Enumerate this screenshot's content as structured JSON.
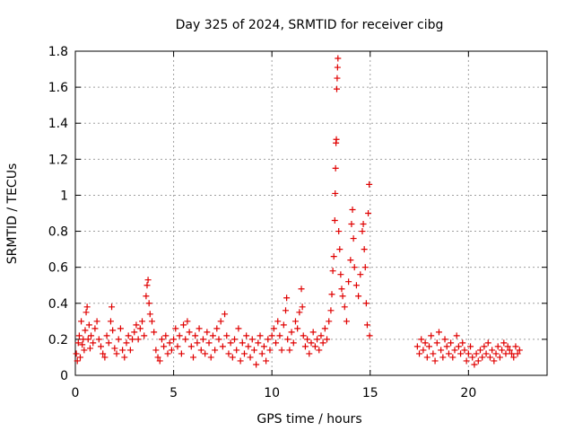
{
  "chart_data": {
    "type": "scatter",
    "title": "Day 325 of 2024, SRMTID for receiver cibg",
    "xlabel": "GPS time / hours",
    "ylabel": "SRMTID / TECUs",
    "xlim": [
      0,
      24
    ],
    "ylim": [
      0,
      1.8
    ],
    "xticks": [
      0,
      5,
      10,
      15,
      20
    ],
    "yticks": [
      0,
      0.2,
      0.4,
      0.6,
      0.8,
      1,
      1.2,
      1.4,
      1.6,
      1.8
    ],
    "ytick_labels": [
      "0",
      "0.2",
      "0.4",
      "0.6",
      "0.8",
      "1",
      "1.2",
      "1.4",
      "1.6",
      "1.8"
    ],
    "grid": true,
    "marker": "+",
    "color": "#e00000",
    "series": [
      {
        "name": "SRMTID",
        "points": [
          [
            0.05,
            0.12
          ],
          [
            0.1,
            0.08
          ],
          [
            0.15,
            0.18
          ],
          [
            0.2,
            0.22
          ],
          [
            0.25,
            0.1
          ],
          [
            0.3,
            0.3
          ],
          [
            0.35,
            0.17
          ],
          [
            0.4,
            0.2
          ],
          [
            0.45,
            0.14
          ],
          [
            0.5,
            0.25
          ],
          [
            0.55,
            0.35
          ],
          [
            0.6,
            0.38
          ],
          [
            0.65,
            0.2
          ],
          [
            0.7,
            0.28
          ],
          [
            0.75,
            0.15
          ],
          [
            0.8,
            0.22
          ],
          [
            0.9,
            0.18
          ],
          [
            1.0,
            0.26
          ],
          [
            1.1,
            0.3
          ],
          [
            1.2,
            0.2
          ],
          [
            1.3,
            0.16
          ],
          [
            1.4,
            0.12
          ],
          [
            1.5,
            0.1
          ],
          [
            1.6,
            0.22
          ],
          [
            1.7,
            0.18
          ],
          [
            1.8,
            0.3
          ],
          [
            1.85,
            0.38
          ],
          [
            1.9,
            0.25
          ],
          [
            2.0,
            0.15
          ],
          [
            2.1,
            0.12
          ],
          [
            2.2,
            0.2
          ],
          [
            2.3,
            0.26
          ],
          [
            2.4,
            0.14
          ],
          [
            2.5,
            0.1
          ],
          [
            2.6,
            0.18
          ],
          [
            2.7,
            0.22
          ],
          [
            2.8,
            0.14
          ],
          [
            2.9,
            0.2
          ],
          [
            3.0,
            0.24
          ],
          [
            3.1,
            0.28
          ],
          [
            3.2,
            0.2
          ],
          [
            3.3,
            0.26
          ],
          [
            3.4,
            0.3
          ],
          [
            3.5,
            0.22
          ],
          [
            3.6,
            0.44
          ],
          [
            3.65,
            0.5
          ],
          [
            3.7,
            0.53
          ],
          [
            3.75,
            0.4
          ],
          [
            3.8,
            0.34
          ],
          [
            3.9,
            0.3
          ],
          [
            4.0,
            0.24
          ],
          [
            4.1,
            0.14
          ],
          [
            4.2,
            0.1
          ],
          [
            4.3,
            0.08
          ],
          [
            4.4,
            0.2
          ],
          [
            4.5,
            0.16
          ],
          [
            4.6,
            0.22
          ],
          [
            4.7,
            0.12
          ],
          [
            4.8,
            0.18
          ],
          [
            4.9,
            0.14
          ],
          [
            5.0,
            0.2
          ],
          [
            5.1,
            0.26
          ],
          [
            5.2,
            0.16
          ],
          [
            5.3,
            0.22
          ],
          [
            5.4,
            0.12
          ],
          [
            5.5,
            0.28
          ],
          [
            5.6,
            0.2
          ],
          [
            5.7,
            0.3
          ],
          [
            5.8,
            0.24
          ],
          [
            5.9,
            0.16
          ],
          [
            6.0,
            0.1
          ],
          [
            6.1,
            0.22
          ],
          [
            6.2,
            0.18
          ],
          [
            6.3,
            0.26
          ],
          [
            6.4,
            0.14
          ],
          [
            6.5,
            0.2
          ],
          [
            6.6,
            0.12
          ],
          [
            6.7,
            0.24
          ],
          [
            6.8,
            0.18
          ],
          [
            6.9,
            0.1
          ],
          [
            7.0,
            0.22
          ],
          [
            7.1,
            0.14
          ],
          [
            7.2,
            0.26
          ],
          [
            7.3,
            0.2
          ],
          [
            7.4,
            0.3
          ],
          [
            7.5,
            0.16
          ],
          [
            7.6,
            0.34
          ],
          [
            7.7,
            0.22
          ],
          [
            7.8,
            0.12
          ],
          [
            7.9,
            0.18
          ],
          [
            8.0,
            0.1
          ],
          [
            8.1,
            0.2
          ],
          [
            8.2,
            0.14
          ],
          [
            8.3,
            0.26
          ],
          [
            8.4,
            0.08
          ],
          [
            8.5,
            0.18
          ],
          [
            8.6,
            0.12
          ],
          [
            8.7,
            0.22
          ],
          [
            8.8,
            0.16
          ],
          [
            8.9,
            0.1
          ],
          [
            9.0,
            0.2
          ],
          [
            9.1,
            0.14
          ],
          [
            9.2,
            0.06
          ],
          [
            9.3,
            0.18
          ],
          [
            9.4,
            0.22
          ],
          [
            9.5,
            0.12
          ],
          [
            9.6,
            0.16
          ],
          [
            9.7,
            0.08
          ],
          [
            9.8,
            0.2
          ],
          [
            9.9,
            0.14
          ],
          [
            10.0,
            0.22
          ],
          [
            10.1,
            0.26
          ],
          [
            10.2,
            0.18
          ],
          [
            10.3,
            0.3
          ],
          [
            10.4,
            0.22
          ],
          [
            10.5,
            0.14
          ],
          [
            10.6,
            0.28
          ],
          [
            10.7,
            0.36
          ],
          [
            10.75,
            0.43
          ],
          [
            10.8,
            0.2
          ],
          [
            10.9,
            0.14
          ],
          [
            11.0,
            0.24
          ],
          [
            11.1,
            0.18
          ],
          [
            11.2,
            0.3
          ],
          [
            11.3,
            0.26
          ],
          [
            11.4,
            0.35
          ],
          [
            11.5,
            0.48
          ],
          [
            11.55,
            0.38
          ],
          [
            11.6,
            0.22
          ],
          [
            11.7,
            0.16
          ],
          [
            11.8,
            0.2
          ],
          [
            11.9,
            0.12
          ],
          [
            12.0,
            0.18
          ],
          [
            12.1,
            0.24
          ],
          [
            12.2,
            0.16
          ],
          [
            12.3,
            0.2
          ],
          [
            12.4,
            0.14
          ],
          [
            12.5,
            0.22
          ],
          [
            12.6,
            0.18
          ],
          [
            12.7,
            0.26
          ],
          [
            12.8,
            0.2
          ],
          [
            12.9,
            0.3
          ],
          [
            13.0,
            0.36
          ],
          [
            13.05,
            0.45
          ],
          [
            13.1,
            0.58
          ],
          [
            13.15,
            0.66
          ],
          [
            13.2,
            0.86
          ],
          [
            13.22,
            1.01
          ],
          [
            13.24,
            1.15
          ],
          [
            13.26,
            1.29
          ],
          [
            13.28,
            1.31
          ],
          [
            13.3,
            1.59
          ],
          [
            13.32,
            1.65
          ],
          [
            13.34,
            1.71
          ],
          [
            13.36,
            1.76
          ],
          [
            13.4,
            0.8
          ],
          [
            13.45,
            0.7
          ],
          [
            13.5,
            0.56
          ],
          [
            13.55,
            0.48
          ],
          [
            13.6,
            0.44
          ],
          [
            13.7,
            0.38
          ],
          [
            13.8,
            0.3
          ],
          [
            13.9,
            0.52
          ],
          [
            14.0,
            0.64
          ],
          [
            14.05,
            0.84
          ],
          [
            14.1,
            0.92
          ],
          [
            14.15,
            0.76
          ],
          [
            14.2,
            0.6
          ],
          [
            14.3,
            0.5
          ],
          [
            14.4,
            0.44
          ],
          [
            14.5,
            0.56
          ],
          [
            14.6,
            0.8
          ],
          [
            14.65,
            0.84
          ],
          [
            14.7,
            0.7
          ],
          [
            14.75,
            0.6
          ],
          [
            14.8,
            0.4
          ],
          [
            14.85,
            0.28
          ],
          [
            14.9,
            0.9
          ],
          [
            14.95,
            1.06
          ],
          [
            14.97,
            0.22
          ],
          [
            17.4,
            0.16
          ],
          [
            17.5,
            0.12
          ],
          [
            17.6,
            0.2
          ],
          [
            17.7,
            0.14
          ],
          [
            17.8,
            0.18
          ],
          [
            17.9,
            0.1
          ],
          [
            18.0,
            0.16
          ],
          [
            18.1,
            0.22
          ],
          [
            18.2,
            0.12
          ],
          [
            18.3,
            0.08
          ],
          [
            18.4,
            0.18
          ],
          [
            18.5,
            0.24
          ],
          [
            18.6,
            0.14
          ],
          [
            18.7,
            0.1
          ],
          [
            18.8,
            0.2
          ],
          [
            18.9,
            0.16
          ],
          [
            19.0,
            0.12
          ],
          [
            19.1,
            0.18
          ],
          [
            19.2,
            0.1
          ],
          [
            19.3,
            0.14
          ],
          [
            19.4,
            0.22
          ],
          [
            19.5,
            0.16
          ],
          [
            19.6,
            0.12
          ],
          [
            19.7,
            0.18
          ],
          [
            19.8,
            0.14
          ],
          [
            19.9,
            0.08
          ],
          [
            20.0,
            0.12
          ],
          [
            20.1,
            0.16
          ],
          [
            20.2,
            0.1
          ],
          [
            20.3,
            0.06
          ],
          [
            20.4,
            0.12
          ],
          [
            20.5,
            0.08
          ],
          [
            20.6,
            0.14
          ],
          [
            20.7,
            0.1
          ],
          [
            20.8,
            0.16
          ],
          [
            20.9,
            0.12
          ],
          [
            21.0,
            0.18
          ],
          [
            21.1,
            0.1
          ],
          [
            21.2,
            0.14
          ],
          [
            21.3,
            0.08
          ],
          [
            21.4,
            0.12
          ],
          [
            21.5,
            0.16
          ],
          [
            21.6,
            0.1
          ],
          [
            21.7,
            0.14
          ],
          [
            21.8,
            0.18
          ],
          [
            21.9,
            0.12
          ],
          [
            22.0,
            0.16
          ],
          [
            22.1,
            0.14
          ],
          [
            22.2,
            0.12
          ],
          [
            22.3,
            0.1
          ],
          [
            22.4,
            0.16
          ],
          [
            22.5,
            0.12
          ],
          [
            22.6,
            0.14
          ]
        ]
      }
    ]
  }
}
